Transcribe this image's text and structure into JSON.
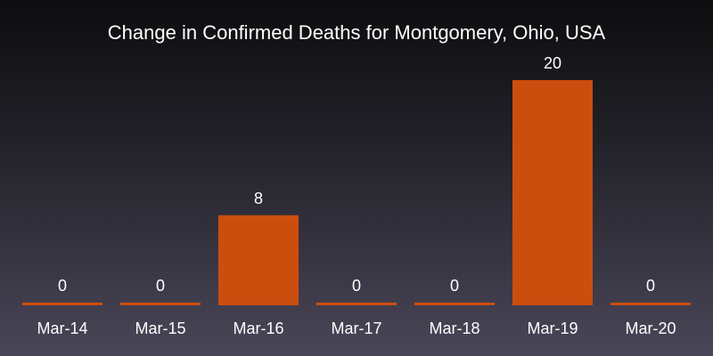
{
  "chart_data": {
    "type": "bar",
    "title": "Change in Confirmed Deaths for Montgomery, Ohio, USA",
    "categories": [
      "Mar-14",
      "Mar-15",
      "Mar-16",
      "Mar-17",
      "Mar-18",
      "Mar-19",
      "Mar-20"
    ],
    "values": [
      0,
      0,
      8,
      0,
      0,
      20,
      0
    ],
    "data_labels": [
      "0",
      "0",
      "8",
      "0",
      "0",
      "20",
      "0"
    ],
    "ylim": [
      0,
      20
    ],
    "grid": false,
    "legend": "none",
    "bar_color": "#cc4e0e"
  }
}
